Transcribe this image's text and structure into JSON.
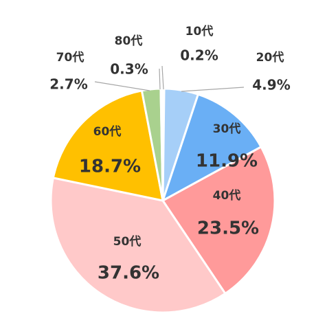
{
  "chart_data": {
    "type": "pie",
    "title": "",
    "start_angle_deg": 0,
    "direction": "clockwise",
    "slices": [
      {
        "category": "10代",
        "value": 0.2,
        "value_label": "0.2%",
        "color": "#a6cff8"
      },
      {
        "category": "20代",
        "value": 4.9,
        "value_label": "4.9%",
        "color": "#a6cff8"
      },
      {
        "category": "30代",
        "value": 11.9,
        "value_label": "11.9%",
        "color": "#6aaff5"
      },
      {
        "category": "40代",
        "value": 23.5,
        "value_label": "23.5%",
        "color": "#ff9a9a"
      },
      {
        "category": "50代",
        "value": 37.6,
        "value_label": "37.6%",
        "color": "#ffc9c9"
      },
      {
        "category": "60代",
        "value": 18.7,
        "value_label": "18.7%",
        "color": "#ffc000"
      },
      {
        "category": "70代",
        "value": 2.7,
        "value_label": "2.7%",
        "color": "#a9d18e"
      },
      {
        "category": "80代",
        "value": 0.3,
        "value_label": "0.3%",
        "color": "#a6cff8"
      }
    ],
    "legend": "none",
    "slice_border_color": "#ffffff",
    "leader_line_color": "#a6a6a6"
  }
}
